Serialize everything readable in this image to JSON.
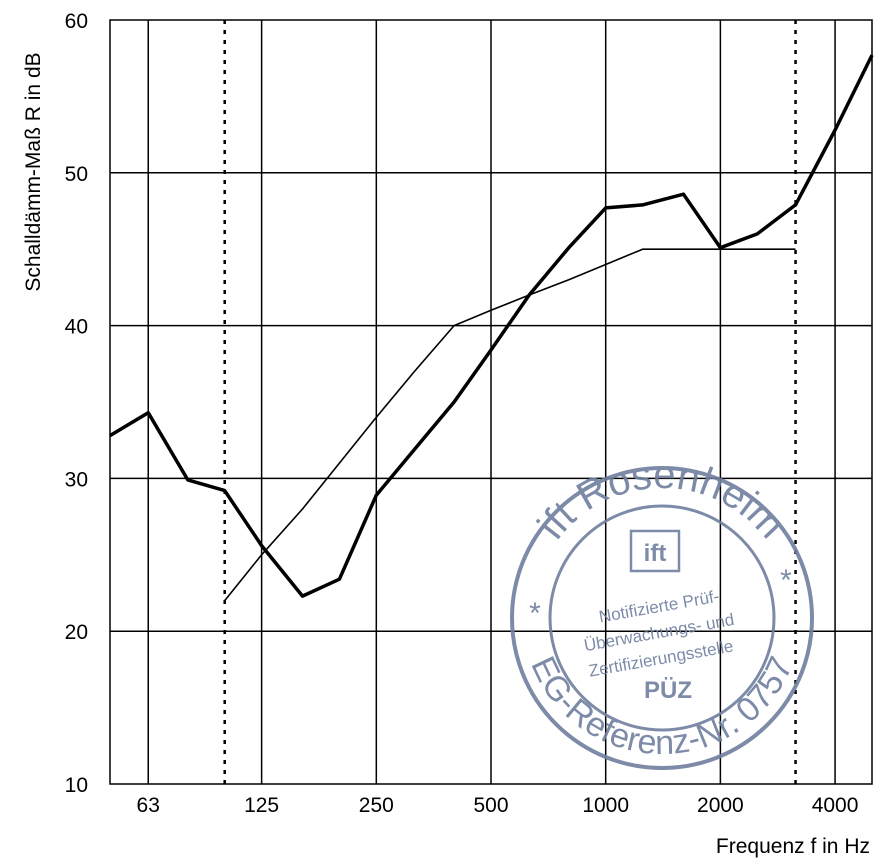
{
  "chart_data": {
    "type": "line",
    "ylabel": "Schalldämm-Maß R in dB",
    "xlabel": "Frequenz f in Hz",
    "x_scale": "log",
    "xlim": [
      50,
      5000
    ],
    "ylim": [
      10,
      60
    ],
    "y_ticks": [
      10,
      20,
      30,
      40,
      50,
      60
    ],
    "x_tick_labels": [
      {
        "value": 63,
        "label": "63"
      },
      {
        "value": 125,
        "label": "125"
      },
      {
        "value": 250,
        "label": "250"
      },
      {
        "value": 500,
        "label": "500"
      },
      {
        "value": 1000,
        "label": "1000"
      },
      {
        "value": 2000,
        "label": "2000"
      },
      {
        "value": 4000,
        "label": "4000"
      }
    ],
    "x_gridlines": [
      63,
      125,
      250,
      500,
      1000,
      2000,
      4000
    ],
    "y_gridlines": [
      20,
      30,
      40,
      50
    ],
    "grid": true,
    "vertical_markers": [
      100,
      3150
    ],
    "series": [
      {
        "style": "thick",
        "color": "#000000",
        "x": [
          50,
          63,
          80,
          100,
          125,
          160,
          200,
          250,
          315,
          400,
          500,
          630,
          800,
          1000,
          1250,
          1600,
          2000,
          2500,
          3150,
          4000,
          5000
        ],
        "y": [
          32.8,
          34.3,
          29.9,
          29.2,
          25.6,
          22.3,
          23.4,
          28.9,
          31.9,
          35.0,
          38.4,
          42.0,
          45.1,
          47.7,
          47.9,
          48.6,
          45.1,
          46.0,
          47.9,
          52.8,
          57.7
        ]
      },
      {
        "style": "thin",
        "color": "#000000",
        "x": [
          100,
          125,
          160,
          200,
          250,
          315,
          400,
          500,
          630,
          800,
          1000,
          1250,
          1600,
          2000,
          2500,
          3150
        ],
        "y": [
          22,
          25,
          28,
          31,
          34,
          37,
          40,
          41,
          42,
          43,
          44,
          45,
          45,
          45,
          45,
          45
        ]
      }
    ]
  },
  "stamp": {
    "color": "#6f7f9f",
    "top_text": "ift Rosenheim",
    "bottom_text": "EG-Referenz-Nr. 0757",
    "logo_text": "ift",
    "line1": "Notifizierte Prüf-",
    "line2": "Überwachungs- und",
    "line3": "Zertifizierungsstelle",
    "line4": "PÜZ"
  }
}
